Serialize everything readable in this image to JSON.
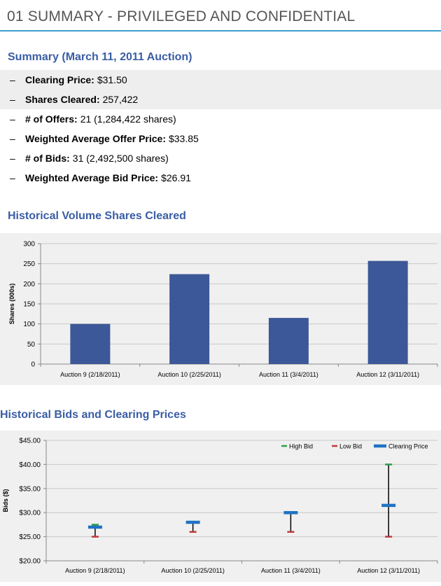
{
  "header": {
    "title": "01 SUMMARY - PRIVILEGED AND CONFIDENTIAL"
  },
  "summary": {
    "heading": "Summary (March 11, 2011 Auction)",
    "items": [
      {
        "label": "Clearing Price:",
        "value": "$31.50"
      },
      {
        "label": "Shares Cleared:",
        "value": "257,422"
      },
      {
        "label": "# of Offers:",
        "value": "21 (1,284,422 shares)"
      },
      {
        "label": "Weighted Average Offer Price:",
        "value": "$33.85"
      },
      {
        "label": "# of Bids:",
        "value": "31 (2,492,500 shares)"
      },
      {
        "label": "Weighted Average Bid Price:",
        "value": "$26.91"
      }
    ]
  },
  "volume_section": {
    "heading": "Historical Volume Shares Cleared"
  },
  "bids_section": {
    "heading": "Historical Bids and Clearing Prices"
  },
  "chart_data": [
    {
      "type": "bar",
      "title": "",
      "xlabel": "",
      "ylabel": "Shares (000s)",
      "categories": [
        "Auction 9 (2/18/2011)",
        "Auction 10 (2/25/2011)",
        "Auction 11 (3/4/2011)",
        "Auction 12 (3/11/2011)"
      ],
      "values": [
        100,
        224,
        115,
        257
      ],
      "ylim": [
        0,
        300
      ],
      "yticks": [
        "0",
        "50",
        "100",
        "150",
        "200",
        "250",
        "300"
      ],
      "ytick_values": [
        0,
        50,
        100,
        150,
        200,
        250,
        300
      ],
      "grid": true,
      "color": "#3c5898"
    },
    {
      "type": "high-low",
      "title": "",
      "xlabel": "",
      "ylabel": "Bids ($)",
      "categories": [
        "Auction 9 (2/18/2011)",
        "Auction 10 (2/25/2011)",
        "Auction 11 (3/4/2011)",
        "Auction 12 (3/11/2011)"
      ],
      "ylim": [
        20,
        45
      ],
      "yticks": [
        "$20.00",
        "$25.00",
        "$30.00",
        "$35.00",
        "$40.00",
        "$45.00"
      ],
      "ytick_values": [
        20,
        25,
        30,
        35,
        40,
        45
      ],
      "grid": true,
      "legend_position": "top-right",
      "series": [
        {
          "name": "High Bid",
          "color": "#2ca048",
          "values": [
            27.5,
            28,
            30,
            40
          ]
        },
        {
          "name": "Low Bid",
          "color": "#c0393b",
          "values": [
            25,
            26,
            26,
            25
          ]
        },
        {
          "name": "Clearing Price",
          "color": "#1f72c4",
          "values": [
            27,
            28,
            30,
            31.5
          ]
        }
      ]
    }
  ]
}
